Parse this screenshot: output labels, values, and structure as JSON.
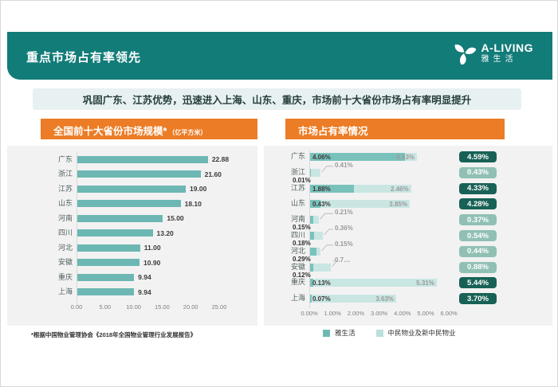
{
  "header": {
    "title": "重点市场占有率领先",
    "logo": {
      "brand": "A-LIVING",
      "brand_cn": "雅生活"
    }
  },
  "banner": {
    "text": "巩固广东、江苏优势，迅速进入上海、山东、重庆，市场前十大省份市场占有率明显提升"
  },
  "footnote": "*根据中国物业管理协会《2018年全国物业管理行业发展报告》",
  "legend": [
    {
      "label": "雅生活",
      "color": "#6FB9B4"
    },
    {
      "label": "中民物业及新中民物业",
      "color": "#B9E0DC"
    }
  ],
  "colors": {
    "header_teal": "#127C79",
    "title_orange": "#EC7C26",
    "banner_bg": "#E7F1F1",
    "panel_bg": "#F2F2F2",
    "bar_teal": "#6CB7B3",
    "series_dark": "#79C2BB",
    "series_light": "#C9E6E3",
    "badge_dark": "#186156",
    "badge_light": "#90C0B4"
  },
  "chart_data": [
    {
      "type": "bar",
      "title": "全国前十大省份市场规模*",
      "unit": "（亿平方米）",
      "categories": [
        "广东",
        "浙江",
        "江苏",
        "山东",
        "河南",
        "四川",
        "河北",
        "安徽",
        "重庆",
        "上海"
      ],
      "values": [
        22.88,
        21.6,
        19.0,
        18.1,
        15.0,
        13.2,
        11.0,
        10.9,
        9.94,
        9.94
      ],
      "value_labels": [
        "22.88",
        "21.60",
        "19.00",
        "18.10",
        "15.00",
        "13.20",
        "11.00",
        "10.90",
        "9.94",
        "9.94"
      ],
      "xlim": [
        0,
        25
      ],
      "x_ticks": [
        "0.00",
        "5.00",
        "10.00",
        "15.00",
        "20.00",
        "25.00"
      ],
      "legend_position": "none",
      "grid": false
    },
    {
      "type": "bar",
      "subtype": "stacked-horizontal",
      "title": "市场占有率情况",
      "categories": [
        "广东",
        "浙江",
        "江苏",
        "山东",
        "河南",
        "四川",
        "河北",
        "安徽",
        "重庆",
        "上海"
      ],
      "series": [
        {
          "name": "雅生活",
          "values": [
            4.06,
            0.01,
            1.88,
            0.43,
            0.15,
            0.18,
            0.29,
            0.12,
            0.13,
            0.07
          ]
        },
        {
          "name": "中民物业及新中民物业",
          "values": [
            0.53,
            0.41,
            2.46,
            3.85,
            0.21,
            0.36,
            0.15,
            0.76,
            5.31,
            3.63
          ]
        }
      ],
      "labels_dark": [
        "4.06%",
        "0.01%",
        "1.88%",
        "0.43%",
        "0.15%",
        "0.18%",
        "0.29%",
        "0.12%",
        "0.13%",
        "0.07%"
      ],
      "labels_light": [
        "0.53%",
        "0.41%",
        "2.46%",
        "3.85%",
        "0.21%",
        "0.36%",
        "0.15%",
        "0.7…",
        "5.31%",
        "3.63%"
      ],
      "totals": [
        "4.59%",
        "0.43%",
        "4.33%",
        "4.28%",
        "0.37%",
        "0.54%",
        "0.44%",
        "0.88%",
        "5.44%",
        "3.70%"
      ],
      "total_style": [
        "dark",
        "light",
        "dark",
        "dark",
        "light",
        "light",
        "light",
        "light",
        "dark",
        "dark"
      ],
      "row_type": [
        "inline",
        "callout",
        "inline",
        "inline",
        "callout",
        "callout",
        "callout",
        "callout",
        "inline",
        "inline"
      ],
      "xlim": [
        0,
        6
      ],
      "x_ticks": [
        "0.00%",
        "1.00%",
        "2.00%",
        "3.00%",
        "4.00%",
        "5.00%",
        "6.00%"
      ],
      "legend_position": "bottom",
      "grid": false
    }
  ]
}
